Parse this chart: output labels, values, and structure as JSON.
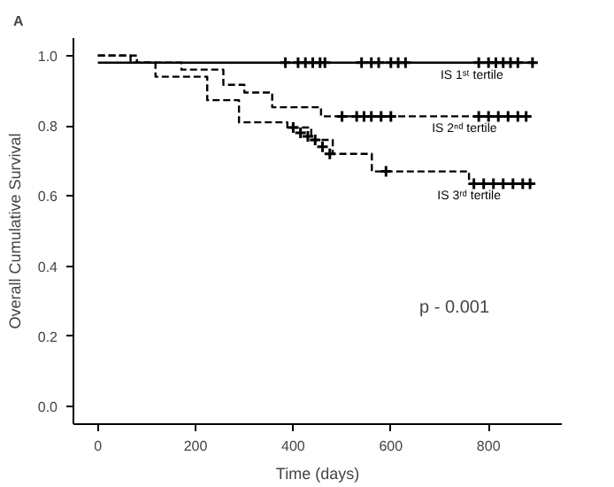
{
  "chart_data": {
    "type": "step",
    "xlabel": "Time (days)",
    "ylabel": "Overall Cumulative Survival",
    "xlim": [
      -50,
      950
    ],
    "ylim": [
      -0.05,
      1.05
    ],
    "xticks": [
      0,
      200,
      400,
      600,
      800
    ],
    "yticks": [
      {
        "value": 0,
        "label": "0.0"
      },
      {
        "value": 0.2,
        "label": "0.2"
      },
      {
        "value": 0.4,
        "label": "0.4"
      },
      {
        "value": 0.6,
        "label": "0.6"
      },
      {
        "value": 0.8,
        "label": "0.8"
      },
      {
        "value": 1.0,
        "label": "1.0"
      }
    ],
    "grid": false,
    "series": [
      {
        "name": "IS 1ˢᵗ tertile",
        "color": "#000000",
        "line_style": "solid",
        "x": [
          0,
          890
        ],
        "values": [
          0.98,
          0.98
        ]
      },
      {
        "name": "IS 2ⁿᵈ tertile",
        "color": "#000000",
        "line_style": "dashed",
        "x": [
          0,
          80,
          171,
          257,
          300,
          357,
          457,
          877
        ],
        "values": [
          1.0,
          0.98,
          0.96,
          0.917,
          0.895,
          0.853,
          0.827,
          0.827
        ]
      },
      {
        "name": "IS 3ʳᵈ tertile",
        "color": "#000000",
        "line_style": "dashed",
        "x": [
          0,
          67,
          118,
          224,
          289,
          388,
          437,
          481,
          561,
          760,
          885
        ],
        "values": [
          1.0,
          0.98,
          0.94,
          0.873,
          0.81,
          0.795,
          0.76,
          0.72,
          0.67,
          0.635,
          0.635
        ]
      },
      {
        "type": "scatter",
        "marker": "cross",
        "color": "#000000",
        "x": [
          384,
          410,
          425,
          440,
          455,
          465,
          540,
          560,
          575,
          600,
          615,
          630,
          780,
          800,
          815,
          830,
          845,
          860,
          890
        ],
        "values": [
          0.98,
          0.98,
          0.98,
          0.98,
          0.98,
          0.98,
          0.98,
          0.98,
          0.98,
          0.98,
          0.98,
          0.98,
          0.98,
          0.98,
          0.98,
          0.98,
          0.98,
          0.98,
          0.98
        ]
      },
      {
        "type": "scatter",
        "marker": "cross",
        "color": "#000000",
        "x": [
          500,
          530,
          545,
          560,
          580,
          600,
          780,
          800,
          820,
          840,
          860,
          877
        ],
        "values": [
          0.827,
          0.827,
          0.827,
          0.827,
          0.827,
          0.827,
          0.827,
          0.827,
          0.827,
          0.827,
          0.827,
          0.827
        ]
      },
      {
        "type": "scatter",
        "marker": "cross",
        "color": "#000000",
        "x": [
          400,
          415,
          430,
          445,
          460,
          475,
          590,
          770,
          790,
          810,
          830,
          850,
          870,
          885
        ],
        "values": [
          0.795,
          0.78,
          0.77,
          0.76,
          0.74,
          0.72,
          0.67,
          0.635,
          0.635,
          0.635,
          0.635,
          0.635,
          0.635,
          0.635
        ]
      }
    ],
    "annotations": [
      "A",
      "p - 0.001"
    ]
  }
}
